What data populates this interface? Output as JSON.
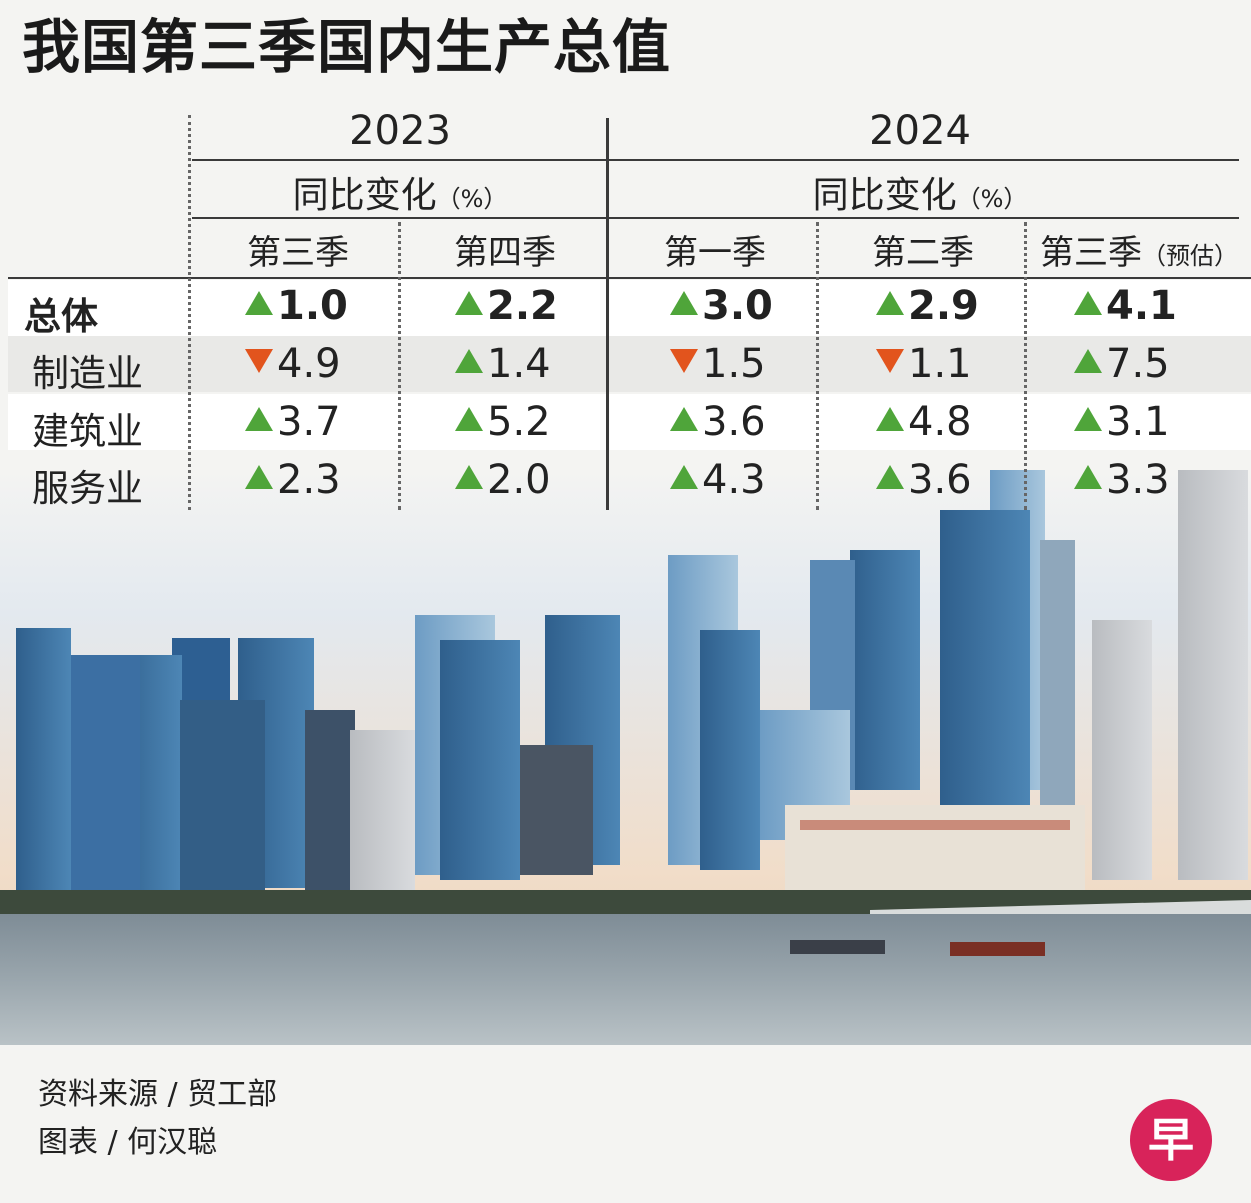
{
  "title": "我国第三季国内生产总值",
  "chart_data": {
    "type": "table",
    "year_groups": [
      {
        "year": "2023",
        "metric": "同比变化",
        "unit": "（%）",
        "quarters": [
          "第三季",
          "第四季"
        ]
      },
      {
        "year": "2024",
        "metric": "同比变化",
        "unit": "（%）",
        "quarters": [
          "第一季",
          "第二季",
          "第三季"
        ]
      }
    ],
    "estimate_note": "（预估）",
    "rows": [
      {
        "label": "总体",
        "bold": true,
        "values": [
          1.0,
          2.2,
          3.0,
          2.9,
          4.1
        ],
        "text": [
          "1.0",
          "2.2",
          "3.0",
          "2.9",
          "4.1"
        ],
        "direction": [
          "up",
          "up",
          "up",
          "up",
          "up"
        ]
      },
      {
        "label": "制造业",
        "bold": false,
        "values": [
          -4.9,
          1.4,
          -1.5,
          -1.1,
          7.5
        ],
        "text": [
          "4.9",
          "1.4",
          "1.5",
          "1.1",
          "7.5"
        ],
        "direction": [
          "down",
          "up",
          "down",
          "down",
          "up"
        ]
      },
      {
        "label": "建筑业",
        "bold": false,
        "values": [
          3.7,
          5.2,
          3.6,
          4.8,
          3.1
        ],
        "text": [
          "3.7",
          "5.2",
          "3.6",
          "4.8",
          "3.1"
        ],
        "direction": [
          "up",
          "up",
          "up",
          "up",
          "up"
        ]
      },
      {
        "label": "服务业",
        "bold": false,
        "values": [
          2.3,
          2.0,
          4.3,
          3.6,
          3.3
        ],
        "text": [
          "2.3",
          "2.0",
          "4.3",
          "3.6",
          "3.3"
        ],
        "direction": [
          "up",
          "up",
          "up",
          "up",
          "up"
        ]
      }
    ]
  },
  "footer": {
    "source": "资料来源 / 贸工部",
    "credit": "图表 / 何汉聪"
  },
  "logo": {
    "char": "早",
    "color": "#d8235a"
  },
  "colors": {
    "up": "#4fa53a",
    "down": "#e2541d",
    "band": "#ffffff"
  }
}
